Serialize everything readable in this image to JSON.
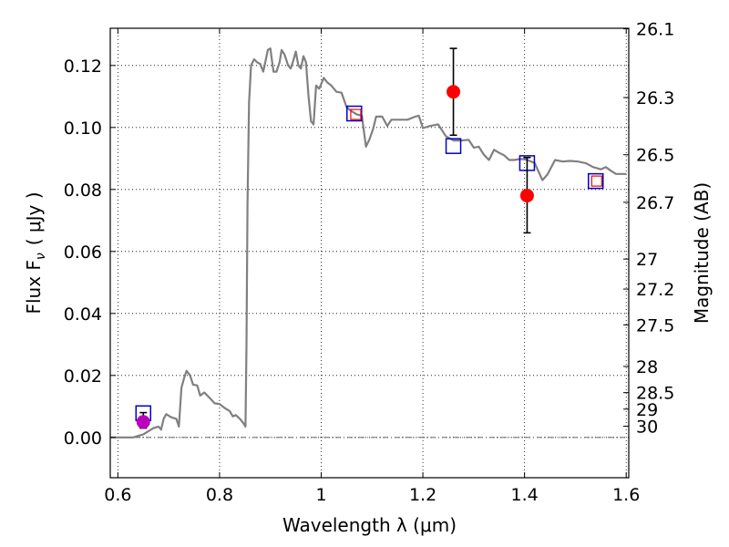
{
  "chart_data": {
    "type": "line",
    "xlabel": "Wavelength  λ (μm)",
    "ylabel": "Flux  F",
    "ylabel_sub": "ν",
    "ylabel_unit": "( μJy )",
    "y2label": "Magnitude (AB)",
    "xlim": [
      0.585,
      1.605
    ],
    "ylim": [
      -0.013,
      0.132
    ],
    "grid": true,
    "x_ticks": [
      {
        "value": 0.6,
        "label": "0.6"
      },
      {
        "value": 0.8,
        "label": "0.8"
      },
      {
        "value": 1.0,
        "label": "1"
      },
      {
        "value": 1.2,
        "label": "1.2"
      },
      {
        "value": 1.4,
        "label": "1.4"
      },
      {
        "value": 1.6,
        "label": "1.6"
      }
    ],
    "y_ticks": [
      {
        "value": 0.0,
        "label": "0.00"
      },
      {
        "value": 0.02,
        "label": "0.02"
      },
      {
        "value": 0.04,
        "label": "0.04"
      },
      {
        "value": 0.06,
        "label": "0.06"
      },
      {
        "value": 0.08,
        "label": "0.08"
      },
      {
        "value": 0.1,
        "label": "0.10"
      },
      {
        "value": 0.12,
        "label": "0.12"
      }
    ],
    "y2_ticks": [
      {
        "value": 26.1,
        "label": "26.1"
      },
      {
        "value": 26.3,
        "label": "26.3"
      },
      {
        "value": 26.5,
        "label": "26.5"
      },
      {
        "value": 26.7,
        "label": "26.7"
      },
      {
        "value": 27.0,
        "label": "27"
      },
      {
        "value": 27.2,
        "label": "27.2"
      },
      {
        "value": 27.5,
        "label": "27.5"
      },
      {
        "value": 28.0,
        "label": "28"
      },
      {
        "value": 28.5,
        "label": "28.5"
      },
      {
        "value": 29.0,
        "label": "29"
      },
      {
        "value": 30.0,
        "label": "30"
      }
    ],
    "zero_line": 0.0,
    "series": [
      {
        "kind": "sed_model",
        "color": "#808080",
        "points": [
          [
            0.585,
            0.0
          ],
          [
            0.63,
            0.0
          ],
          [
            0.65,
            0.001
          ],
          [
            0.67,
            0.003
          ],
          [
            0.68,
            0.0035
          ],
          [
            0.685,
            0.0025
          ],
          [
            0.69,
            0.006
          ],
          [
            0.695,
            0.0075
          ],
          [
            0.705,
            0.0065
          ],
          [
            0.715,
            0.006
          ],
          [
            0.72,
            0.0035
          ],
          [
            0.725,
            0.016
          ],
          [
            0.73,
            0.019
          ],
          [
            0.735,
            0.0215
          ],
          [
            0.742,
            0.02
          ],
          [
            0.748,
            0.017
          ],
          [
            0.756,
            0.0168
          ],
          [
            0.762,
            0.0135
          ],
          [
            0.77,
            0.0145
          ],
          [
            0.782,
            0.0125
          ],
          [
            0.79,
            0.011
          ],
          [
            0.8,
            0.0108
          ],
          [
            0.81,
            0.0095
          ],
          [
            0.82,
            0.0085
          ],
          [
            0.826,
            0.0068
          ],
          [
            0.832,
            0.0072
          ],
          [
            0.84,
            0.006
          ],
          [
            0.846,
            0.0048
          ],
          [
            0.851,
            0.0035
          ],
          [
            0.853,
            0.03
          ],
          [
            0.855,
            0.075
          ],
          [
            0.858,
            0.108
          ],
          [
            0.862,
            0.12
          ],
          [
            0.868,
            0.122
          ],
          [
            0.874,
            0.121
          ],
          [
            0.88,
            0.1205
          ],
          [
            0.886,
            0.118
          ],
          [
            0.89,
            0.121
          ],
          [
            0.895,
            0.125
          ],
          [
            0.9,
            0.1255
          ],
          [
            0.906,
            0.118
          ],
          [
            0.912,
            0.118
          ],
          [
            0.918,
            0.121
          ],
          [
            0.922,
            0.125
          ],
          [
            0.928,
            0.1235
          ],
          [
            0.935,
            0.12
          ],
          [
            0.94,
            0.119
          ],
          [
            0.945,
            0.1215
          ],
          [
            0.95,
            0.1245
          ],
          [
            0.955,
            0.12
          ],
          [
            0.96,
            0.119
          ],
          [
            0.965,
            0.123
          ],
          [
            0.97,
            0.121
          ],
          [
            0.975,
            0.11
          ],
          [
            0.98,
            0.102
          ],
          [
            0.985,
            0.101
          ],
          [
            0.99,
            0.1135
          ],
          [
            0.996,
            0.1125
          ],
          [
            1.005,
            0.116
          ],
          [
            1.012,
            0.1145
          ],
          [
            1.02,
            0.1135
          ],
          [
            1.03,
            0.1115
          ],
          [
            1.04,
            0.1112
          ],
          [
            1.05,
            0.1065
          ],
          [
            1.06,
            0.1052
          ],
          [
            1.07,
            0.1042
          ],
          [
            1.08,
            0.1038
          ],
          [
            1.088,
            0.0938
          ],
          [
            1.095,
            0.0962
          ],
          [
            1.102,
            0.0995
          ],
          [
            1.108,
            0.1035
          ],
          [
            1.12,
            0.1035
          ],
          [
            1.13,
            0.1005
          ],
          [
            1.138,
            0.1025
          ],
          [
            1.15,
            0.1025
          ],
          [
            1.17,
            0.1025
          ],
          [
            1.185,
            0.1035
          ],
          [
            1.192,
            0.1038
          ],
          [
            1.2,
            0.0998
          ],
          [
            1.215,
            0.1005
          ],
          [
            1.23,
            0.101
          ],
          [
            1.245,
            0.0972
          ],
          [
            1.26,
            0.0958
          ],
          [
            1.275,
            0.0958
          ],
          [
            1.29,
            0.096
          ],
          [
            1.3,
            0.0935
          ],
          [
            1.31,
            0.0938
          ],
          [
            1.32,
            0.0912
          ],
          [
            1.33,
            0.0895
          ],
          [
            1.34,
            0.0928
          ],
          [
            1.35,
            0.0918
          ],
          [
            1.36,
            0.091
          ],
          [
            1.37,
            0.0895
          ],
          [
            1.38,
            0.0895
          ],
          [
            1.39,
            0.0898
          ],
          [
            1.4,
            0.0898
          ],
          [
            1.41,
            0.0892
          ],
          [
            1.42,
            0.0885
          ],
          [
            1.435,
            0.083
          ],
          [
            1.445,
            0.0848
          ],
          [
            1.46,
            0.0895
          ],
          [
            1.475,
            0.089
          ],
          [
            1.49,
            0.0892
          ],
          [
            1.505,
            0.089
          ],
          [
            1.52,
            0.0885
          ],
          [
            1.535,
            0.0872
          ],
          [
            1.55,
            0.0865
          ],
          [
            1.56,
            0.0872
          ],
          [
            1.57,
            0.086
          ],
          [
            1.58,
            0.085
          ],
          [
            1.6,
            0.085
          ]
        ]
      },
      {
        "kind": "model_photometry",
        "marker": "square",
        "color": "#0000cc",
        "points": [
          [
            0.65,
            0.0078
          ],
          [
            1.065,
            0.1045
          ],
          [
            1.26,
            0.094
          ],
          [
            1.405,
            0.0885
          ],
          [
            1.54,
            0.0827
          ]
        ]
      },
      {
        "kind": "small_square_markers",
        "marker": "square",
        "color": "#ff0000",
        "points": [
          [
            1.068,
            0.1042
          ],
          [
            1.542,
            0.0827
          ]
        ]
      },
      {
        "kind": "observed_detections",
        "marker": "circle",
        "color": "#ff0000",
        "points": [
          {
            "x": 1.26,
            "y": 0.1115,
            "err_low": 0.0975,
            "err_high": 0.1255
          },
          {
            "x": 1.405,
            "y": 0.078,
            "err_low": 0.066,
            "err_high": 0.0903
          }
        ]
      },
      {
        "kind": "observed_optical",
        "marker": "circle",
        "color": "#bb00bb",
        "points": [
          {
            "x": 0.65,
            "y": 0.005,
            "err_low": 0.003,
            "err_high": 0.008
          }
        ]
      }
    ]
  }
}
